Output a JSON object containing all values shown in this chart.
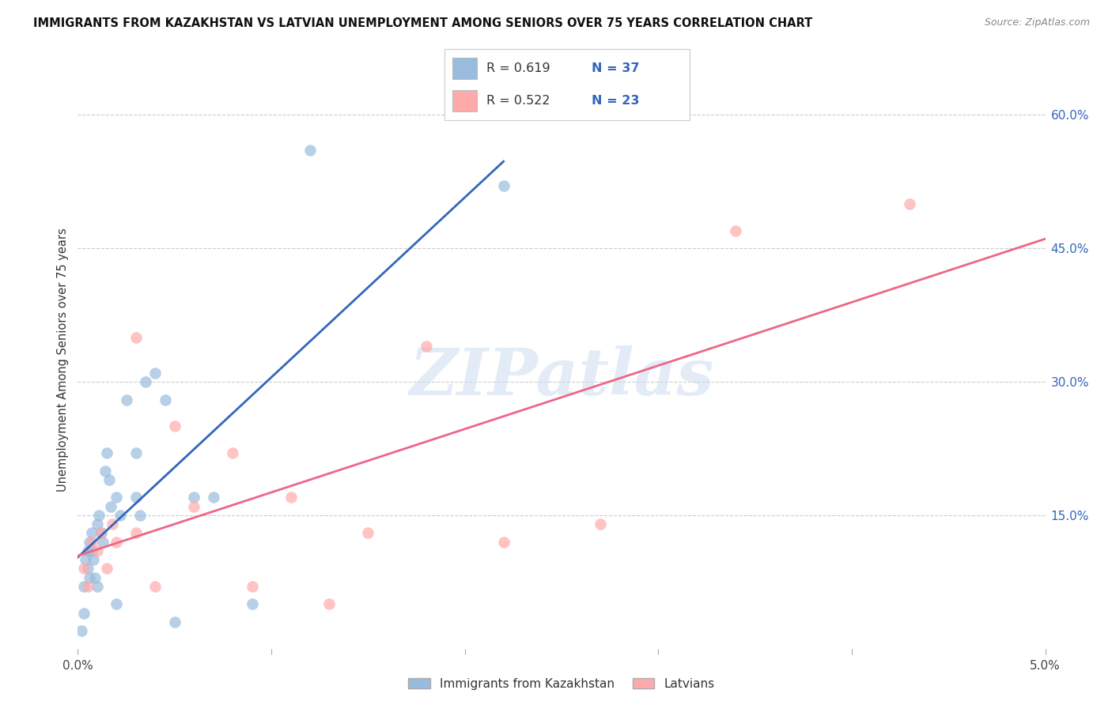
{
  "title": "IMMIGRANTS FROM KAZAKHSTAN VS LATVIAN UNEMPLOYMENT AMONG SENIORS OVER 75 YEARS CORRELATION CHART",
  "source": "Source: ZipAtlas.com",
  "ylabel": "Unemployment Among Seniors over 75 years",
  "y_ticks": [
    0.0,
    0.15,
    0.3,
    0.45,
    0.6
  ],
  "y_tick_labels": [
    "",
    "15.0%",
    "30.0%",
    "45.0%",
    "60.0%"
  ],
  "x_ticks": [
    0.0,
    0.01,
    0.02,
    0.03,
    0.04,
    0.05
  ],
  "x_tick_labels": [
    "0.0%",
    "",
    "",
    "",
    "",
    "5.0%"
  ],
  "legend_blue_r": "0.619",
  "legend_blue_n": "37",
  "legend_pink_r": "0.522",
  "legend_pink_n": "23",
  "legend_label_blue": "Immigrants from Kazakhstan",
  "legend_label_pink": "Latvians",
  "blue_color": "#99bbdd",
  "pink_color": "#ffaaaa",
  "blue_line_color": "#3366bb",
  "pink_line_color": "#ee6688",
  "blue_scatter_x": [
    0.0002,
    0.0003,
    0.0003,
    0.0004,
    0.0005,
    0.0005,
    0.0006,
    0.0006,
    0.0007,
    0.0007,
    0.0008,
    0.0009,
    0.001,
    0.001,
    0.0011,
    0.0012,
    0.0013,
    0.0014,
    0.0015,
    0.0016,
    0.0017,
    0.002,
    0.002,
    0.0022,
    0.0025,
    0.003,
    0.003,
    0.0032,
    0.0035,
    0.004,
    0.0045,
    0.005,
    0.006,
    0.007,
    0.009,
    0.012,
    0.022
  ],
  "blue_scatter_y": [
    0.02,
    0.04,
    0.07,
    0.1,
    0.09,
    0.11,
    0.08,
    0.12,
    0.11,
    0.13,
    0.1,
    0.08,
    0.07,
    0.14,
    0.15,
    0.13,
    0.12,
    0.2,
    0.22,
    0.19,
    0.16,
    0.17,
    0.05,
    0.15,
    0.28,
    0.17,
    0.22,
    0.15,
    0.3,
    0.31,
    0.28,
    0.03,
    0.17,
    0.17,
    0.05,
    0.56,
    0.52
  ],
  "pink_scatter_x": [
    0.0003,
    0.0005,
    0.0007,
    0.001,
    0.0012,
    0.0015,
    0.0018,
    0.002,
    0.003,
    0.003,
    0.004,
    0.005,
    0.006,
    0.008,
    0.009,
    0.011,
    0.013,
    0.015,
    0.018,
    0.022,
    0.027,
    0.034,
    0.043
  ],
  "pink_scatter_y": [
    0.09,
    0.07,
    0.12,
    0.11,
    0.13,
    0.09,
    0.14,
    0.12,
    0.35,
    0.13,
    0.07,
    0.25,
    0.16,
    0.22,
    0.07,
    0.17,
    0.05,
    0.13,
    0.34,
    0.12,
    0.14,
    0.47,
    0.5
  ],
  "watermark": "ZIPatlas",
  "background_color": "#ffffff",
  "grid_color": "#cccccc",
  "xlim": [
    0.0,
    0.05
  ],
  "ylim": [
    0.0,
    0.65
  ]
}
